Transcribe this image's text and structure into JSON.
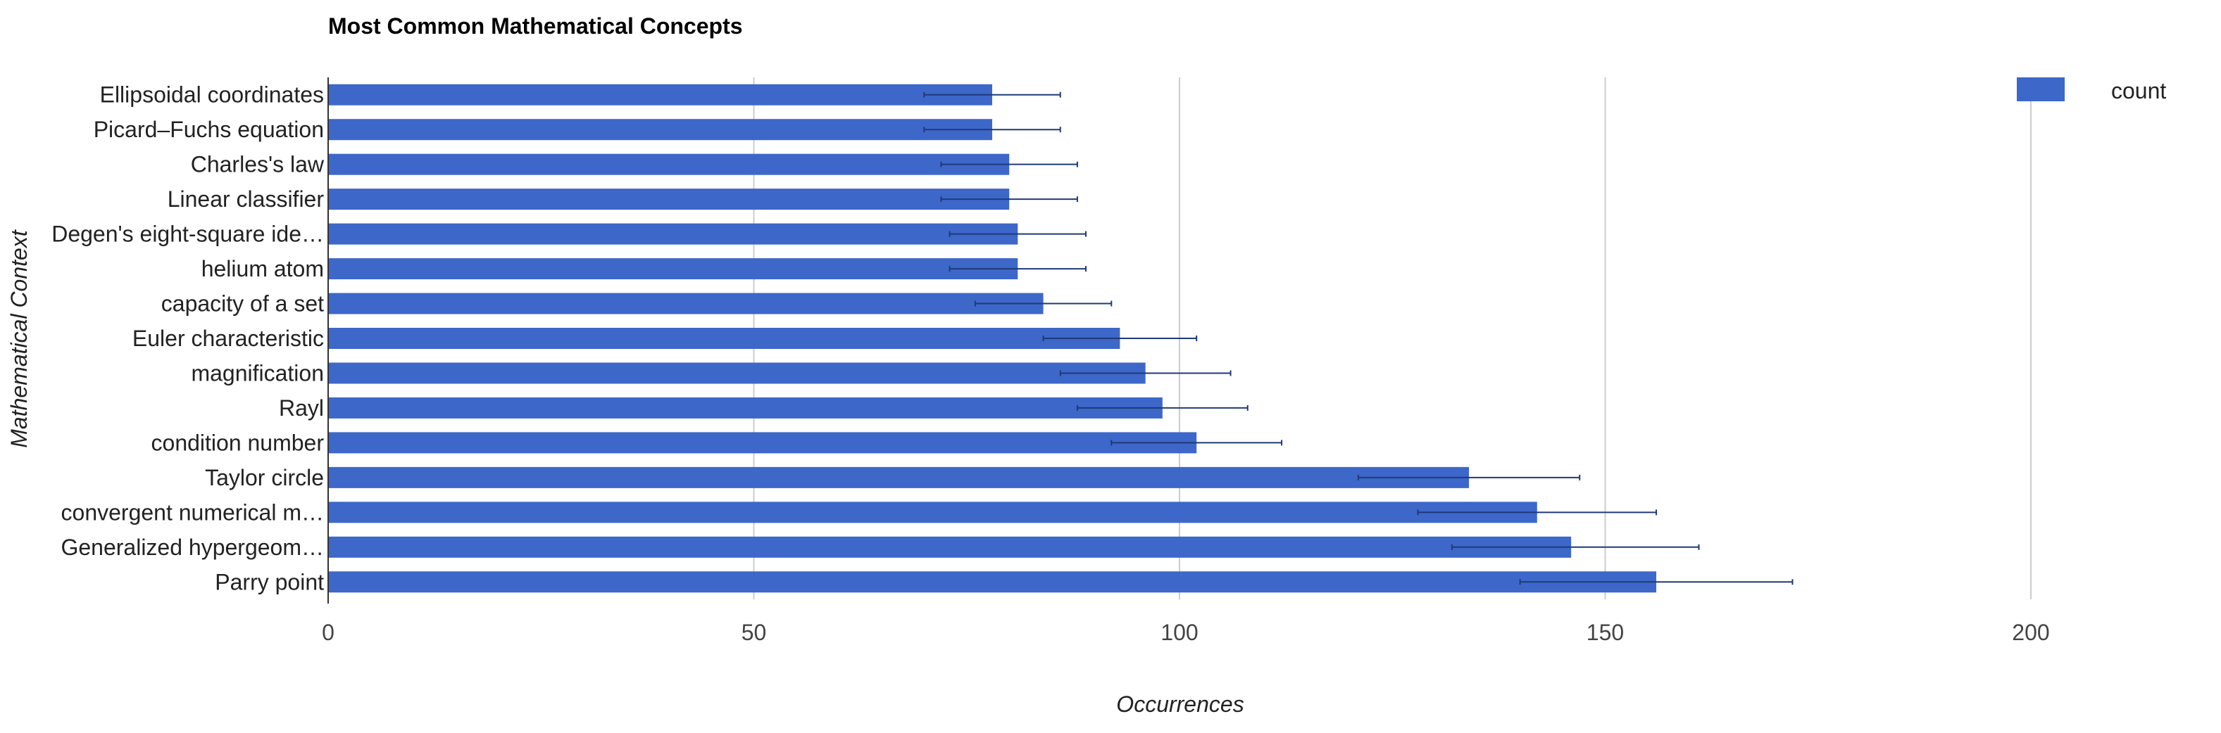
{
  "chart_data": {
    "type": "bar",
    "orientation": "horizontal",
    "title": "Most Common Mathematical Concepts",
    "xlabel": "Occurrences",
    "ylabel": "Mathematical Context",
    "xlim": [
      0,
      200
    ],
    "xticks": [
      0,
      50,
      100,
      150,
      200
    ],
    "grid": true,
    "legend_position": "top-right",
    "categories": [
      "Ellipsoidal coordinates",
      "Picard–Fuchs equation",
      "Charles's law",
      "Linear classifier",
      "Degen's eight-square ide…",
      "helium atom",
      "capacity of a set",
      "Euler characteristic",
      "magnification",
      "Rayl",
      "condition number",
      "Taylor circle",
      "convergent numerical m…",
      "Generalized hypergeom…",
      "Parry point"
    ],
    "series": [
      {
        "name": "count",
        "color": "#3d67c9",
        "values": [
          78,
          78,
          80,
          80,
          81,
          81,
          84,
          93,
          96,
          98,
          102,
          134,
          142,
          146,
          156
        ],
        "error_low": [
          70,
          70,
          72,
          72,
          73,
          73,
          76,
          84,
          86,
          88,
          92,
          121,
          128,
          132,
          140
        ],
        "error_high": [
          86,
          86,
          88,
          88,
          89,
          89,
          92,
          102,
          106,
          108,
          112,
          147,
          156,
          161,
          172
        ]
      }
    ],
    "colors": {
      "bar": "#3d67c9",
      "error_bar": "#1f3a78",
      "grid": "#cccccc",
      "axis": "#333333"
    }
  }
}
